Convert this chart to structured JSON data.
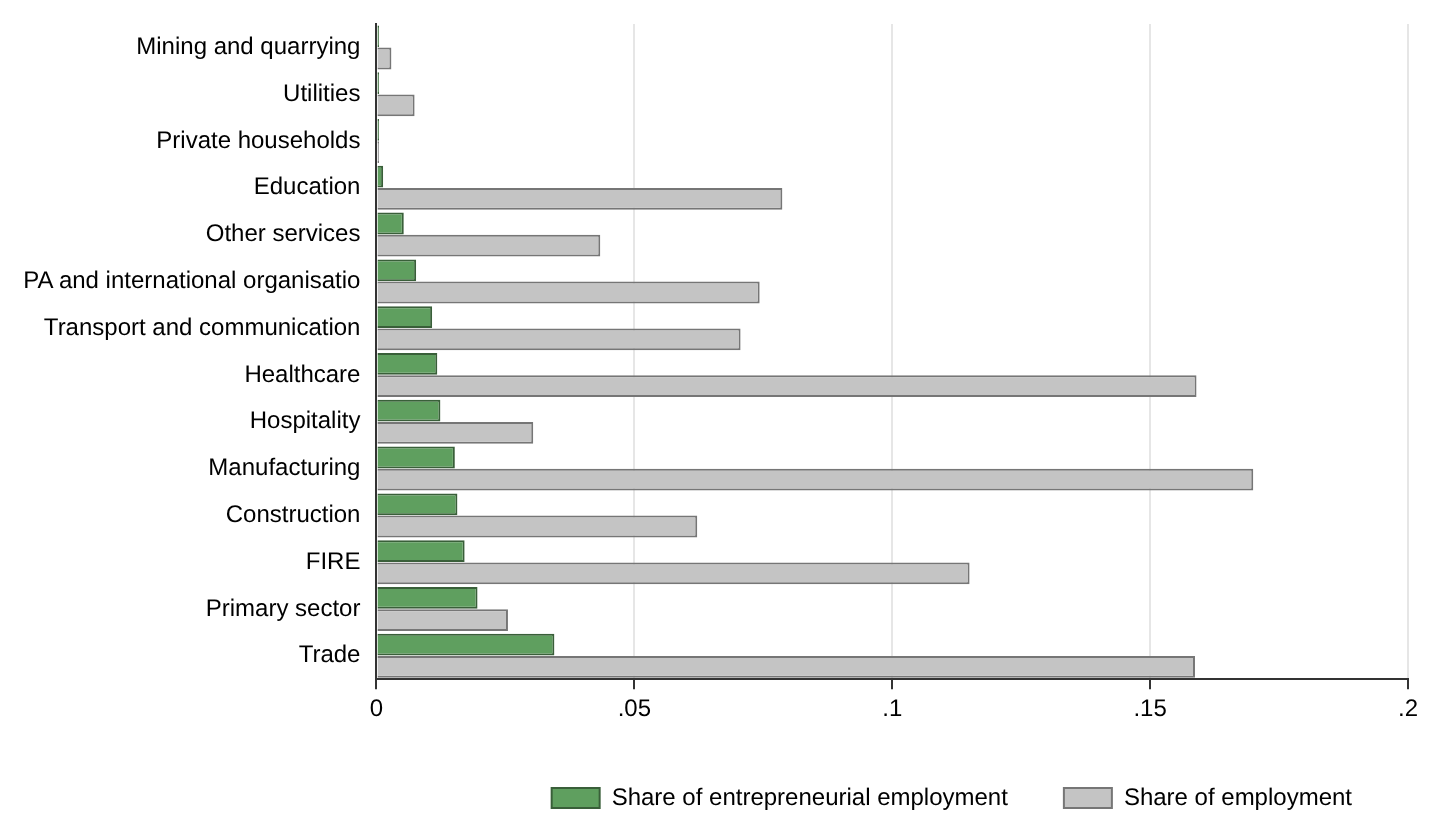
{
  "chart_data": {
    "type": "bar",
    "orientation": "horizontal",
    "categories": [
      "Mining and quarrying",
      "Utilities",
      "Private households",
      "Education",
      "Other services",
      "PA and international organisatio",
      "Transport and communication",
      "Healthcare",
      "Hospitality",
      "Manufacturing",
      "Construction",
      "FIRE",
      "Primary sector",
      "Trade"
    ],
    "series": [
      {
        "name": "Share of entrepreneurial employment",
        "color": "#5f9f5f",
        "values": [
          0.0005,
          0.0005,
          0.0005,
          0.0013,
          0.0053,
          0.0077,
          0.0108,
          0.0118,
          0.0124,
          0.0152,
          0.0157,
          0.0171,
          0.0196,
          0.0345
        ]
      },
      {
        "name": "Share of employment",
        "color": "#c4c4c4",
        "values": [
          0.0029,
          0.0074,
          0.0005,
          0.0787,
          0.0434,
          0.0743,
          0.0706,
          0.159,
          0.0304,
          0.17,
          0.0622,
          0.115,
          0.0255,
          0.1587
        ]
      }
    ],
    "xlim": [
      0,
      0.2
    ],
    "xticks": [
      0,
      {
        "value": 0.05,
        "label": ".05"
      },
      {
        "value": 0.1,
        "label": ".1"
      },
      {
        "value": 0.15,
        "label": ".15"
      },
      {
        "value": 0.2,
        "label": ".2"
      }
    ],
    "grid": "x",
    "legend": "bottom"
  }
}
